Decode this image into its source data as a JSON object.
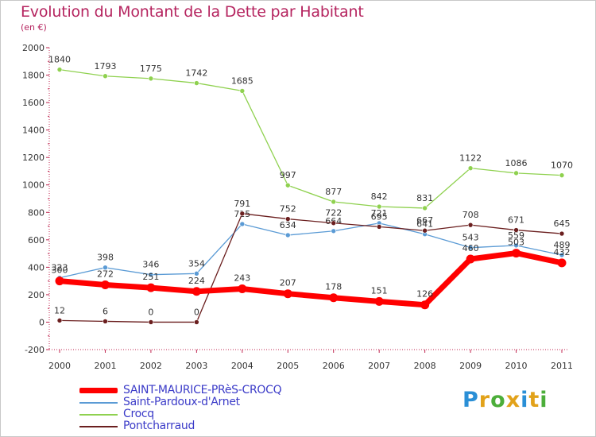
{
  "chart_data": {
    "type": "line",
    "title": "Evolution du Montant de la Dette par Habitant",
    "subtitle": "(en €)",
    "x": [
      "2000",
      "2001",
      "2002",
      "2003",
      "2004",
      "2005",
      "2006",
      "2007",
      "2008",
      "2009",
      "2010",
      "2011"
    ],
    "ylim": [
      -200,
      2000
    ],
    "yticks": [
      -200,
      0,
      200,
      400,
      600,
      800,
      1000,
      1200,
      1400,
      1600,
      1800,
      2000
    ],
    "grid": false,
    "legend_position": "bottom-left",
    "series": [
      {
        "name": "Crocq",
        "color": "#8fd14f",
        "values": [
          1840,
          1793,
          1775,
          1742,
          1685,
          997,
          877,
          842,
          831,
          1122,
          1086,
          1070
        ]
      },
      {
        "name": "Saint-Pardoux-d'Arnet",
        "color": "#5b9bd5",
        "values": [
          323,
          398,
          346,
          354,
          715,
          634,
          664,
          721,
          641,
          543,
          559,
          489
        ]
      },
      {
        "name": "Pontcharraud",
        "color": "#6b1f1f",
        "values": [
          12,
          6,
          0,
          0,
          791,
          752,
          722,
          695,
          667,
          708,
          671,
          645
        ]
      },
      {
        "name": "SAINT-MAURICE-PRèS-CROCQ",
        "color": "#ff0000",
        "values": [
          300,
          272,
          251,
          224,
          243,
          207,
          178,
          151,
          126,
          460,
          503,
          432
        ]
      }
    ],
    "legend": [
      "SAINT-MAURICE-PRèS-CROCQ",
      "Saint-Pardoux-d'Arnet",
      "Crocq",
      "Pontcharraud"
    ]
  },
  "brand": {
    "letters": [
      "P",
      "r",
      "o",
      "x",
      "i",
      "t",
      "i"
    ],
    "colors": [
      "#2a8fd6",
      "#e2a21a",
      "#4cae3a",
      "#e2a21a",
      "#2a8fd6",
      "#e2a21a",
      "#4cae3a"
    ]
  }
}
